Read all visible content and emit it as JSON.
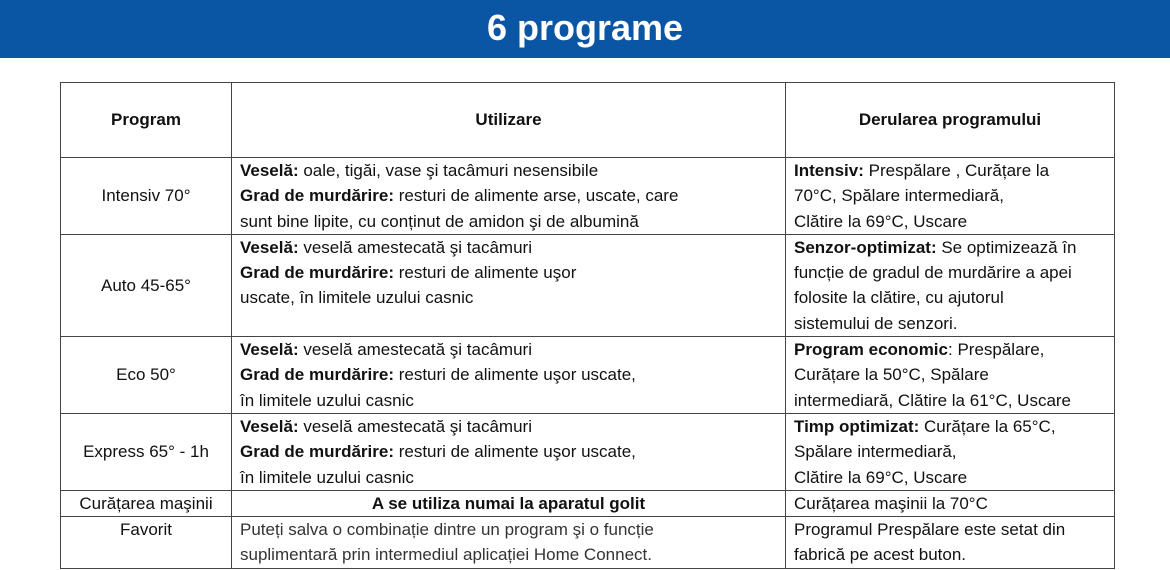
{
  "title": "6 programe",
  "headers": [
    "Program",
    "Utilizare",
    "Derularea programului"
  ],
  "rows": [
    {
      "program": "Intensiv 70°",
      "use": [
        {
          "b": "Veselă:",
          "t": " oale, tigăi, vase şi tacâmuri nesensibile"
        },
        {
          "b": "Grad de murdărire:",
          "t": " resturi de alimente arse, uscate, care"
        },
        {
          "b": "",
          "t": "sunt bine lipite, cu conținut de amidon şi de albumină"
        }
      ],
      "flow": [
        {
          "b": "Intensiv:",
          "t": "  Prespălare , Curățare la"
        },
        {
          "b": "",
          "t": "70°C, Spălare intermediară,"
        },
        {
          "b": "",
          "t": "Clătire la 69°C, Uscare"
        }
      ]
    },
    {
      "program": "Auto 45-65°",
      "use": [
        {
          "b": "Veselă:",
          "t": " veselă amestecată şi tacâmuri"
        },
        {
          "b": "Grad de murdărire:",
          "t": " resturi de alimente uşor"
        },
        {
          "b": "",
          "t": "uscate, în limitele uzului casnic"
        }
      ],
      "flow": [
        {
          "b": "Senzor-optimizat:",
          "t": " Se optimizează în"
        },
        {
          "b": "",
          "t": "funcție de gradul de murdărire a apei"
        },
        {
          "b": "",
          "t": "folosite la clătire, cu ajutorul"
        },
        {
          "b": "",
          "t": "sistemului de senzori."
        }
      ]
    },
    {
      "program": "Eco 50°",
      "use": [
        {
          "b": "Veselă:",
          "t": " veselă amestecată şi tacâmuri"
        },
        {
          "b": "Grad de murdărire:",
          "t": " resturi de alimente uşor uscate,"
        },
        {
          "b": "",
          "t": " în limitele uzului casnic"
        }
      ],
      "flow": [
        {
          "b": "Program economic",
          "t": ": Prespălare,"
        },
        {
          "b": "",
          "t": "Curățare la 50°C, Spălare"
        },
        {
          "b": "",
          "t": "intermediară, Clătire la 61°C, Uscare"
        }
      ]
    },
    {
      "program": "Express 65° - 1h",
      "use": [
        {
          "b": "Veselă:",
          "t": " veselă amestecată şi tacâmuri"
        },
        {
          "b": "Grad de murdărire:",
          "t": " resturi de alimente uşor uscate,"
        },
        {
          "b": "",
          "t": " în limitele uzului casnic"
        }
      ],
      "flow": [
        {
          "b": "Timp optimizat:",
          "t": " Curățare la 65°C,"
        },
        {
          "b": "",
          "t": "Spălare intermediară,"
        },
        {
          "b": "",
          "t": "Clătire la 69°C, Uscare"
        }
      ]
    },
    {
      "program": "Curățarea maşinii",
      "use_center": "A se utiliza numai la aparatul golit",
      "flow": [
        {
          "b": "",
          "t": "Curățarea maşinii la 70°C"
        }
      ]
    },
    {
      "program": "Favorit",
      "use": [
        {
          "b": "",
          "t": "Puteți salva o combinație dintre un program şi o funcție"
        },
        {
          "b": "",
          "t": "suplimentară  prin intermediul aplicației Home Connect."
        }
      ],
      "flow": [
        {
          "b": "",
          "t": "Programul Prespălare este setat din"
        },
        {
          "b": "",
          "t": "fabrică pe acest buton."
        }
      ]
    }
  ],
  "colors": {
    "banner": "#0b55a5"
  }
}
